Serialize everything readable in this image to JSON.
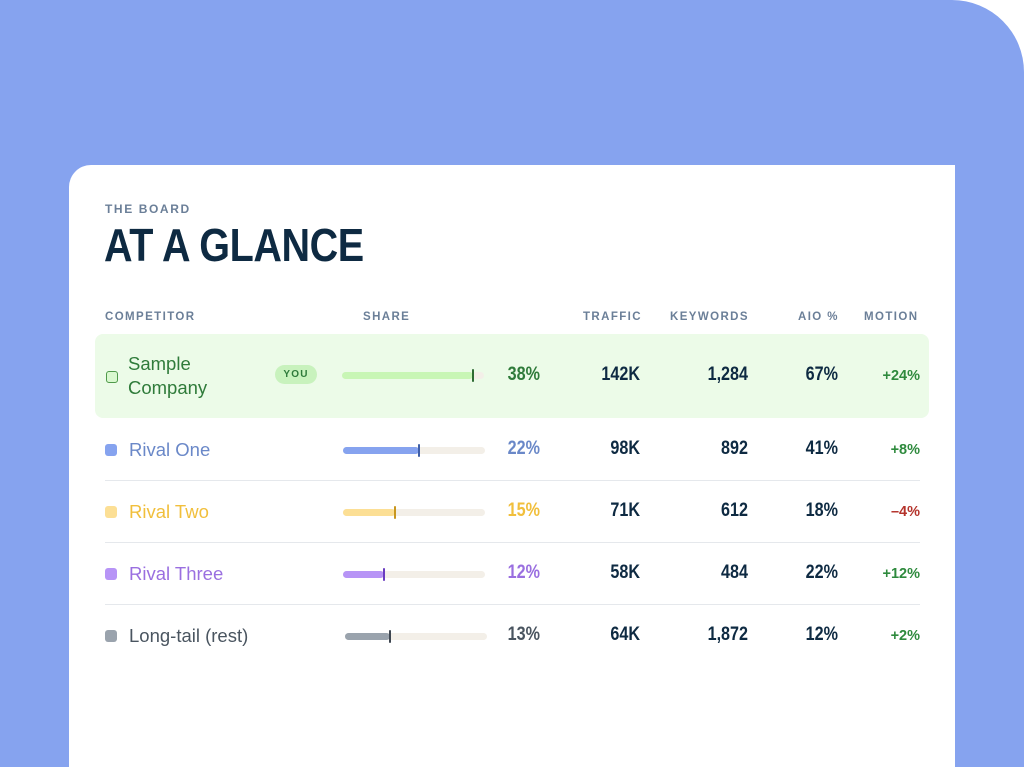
{
  "header": {
    "eyebrow": "THE BOARD",
    "title": "AT A GLANCE"
  },
  "columns": {
    "competitor": "COMPETITOR",
    "share": "SHARE",
    "traffic": "TRAFFIC",
    "keywords": "KEYWORDS",
    "aio": "AIO %",
    "motion": "MOTION"
  },
  "you_badge": "YOU",
  "rows": [
    {
      "name_line1": "Sample",
      "name_line2": "Company",
      "share": "38%",
      "share_value": 0.38,
      "traffic": "142K",
      "keywords": "1,284",
      "aio": "67%",
      "motion": "+24%",
      "color": "#c8f6b5",
      "text_color": "#2f7b3a",
      "marker_color": "#2f6b33",
      "motion_color": "#2e8a3d",
      "swatch_fill": "#d9f8cf",
      "swatch_border": "#4f9a4a"
    },
    {
      "name": "Rival One",
      "share": "22%",
      "share_value": 0.22,
      "traffic": "98K",
      "keywords": "892",
      "aio": "41%",
      "motion": "+8%",
      "color": "#86a3ef",
      "text_color": "#6a88c8",
      "marker_color": "#3f5fa8",
      "motion_color": "#2e8a3d",
      "swatch_fill": "#86a3ef"
    },
    {
      "name": "Rival Two",
      "share": "15%",
      "share_value": 0.15,
      "traffic": "71K",
      "keywords": "612",
      "aio": "18%",
      "motion": "–4%",
      "color": "#fcdf95",
      "text_color": "#f1bf3c",
      "marker_color": "#c8961e",
      "motion_color": "#b4332b",
      "swatch_fill": "#fcdf95"
    },
    {
      "name": "Rival Three",
      "share": "12%",
      "share_value": 0.12,
      "traffic": "58K",
      "keywords": "484",
      "aio": "22%",
      "motion": "+12%",
      "color": "#b794f6",
      "text_color": "#9a6fe0",
      "marker_color": "#6a3cc0",
      "motion_color": "#2e8a3d",
      "swatch_fill": "#b794f6"
    },
    {
      "name": "Long-tail (rest)",
      "share": "13%",
      "share_value": 0.13,
      "traffic": "64K",
      "keywords": "1,872",
      "aio": "12%",
      "motion": "+2%",
      "color": "#9aa3ad",
      "text_color": "#4a5560",
      "marker_color": "#3e4650",
      "motion_color": "#2e8a3d",
      "swatch_fill": "#9aa3ad"
    }
  ]
}
